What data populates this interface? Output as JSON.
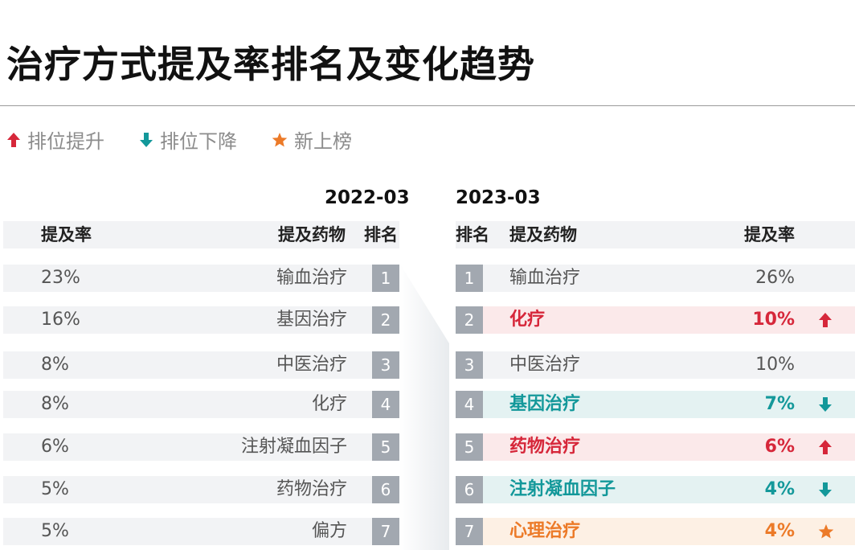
{
  "title": "治疗方式提及率排名及变化趋势",
  "legend": {
    "up_label": "排位提升",
    "down_label": "排位下降",
    "new_label": "新上榜"
  },
  "colors": {
    "up": "#d6273a",
    "down": "#13989a",
    "new": "#ec7a28",
    "rank_box": "#a2a8b0",
    "row_bg": "#f2f3f5"
  },
  "chart_data": {
    "type": "table",
    "left": {
      "period": "2022-03",
      "headers": {
        "rate": "提及率",
        "drug": "提及药物",
        "rank": "排名"
      },
      "rows": [
        {
          "rate": "23%",
          "drug": "输血治疗",
          "rank": "1"
        },
        {
          "rate": "16%",
          "drug": "基因治疗",
          "rank": "2"
        },
        {
          "rate": "8%",
          "drug": "中医治疗",
          "rank": "3"
        },
        {
          "rate": "8%",
          "drug": "化疗",
          "rank": "4"
        },
        {
          "rate": "6%",
          "drug": "注射凝血因子",
          "rank": "5"
        },
        {
          "rate": "5%",
          "drug": "药物治疗",
          "rank": "6"
        },
        {
          "rate": "5%",
          "drug": "偏方",
          "rank": "7"
        }
      ]
    },
    "right": {
      "period": "2023-03",
      "headers": {
        "rank": "排名",
        "drug": "提及药物",
        "rate": "提及率"
      },
      "rows": [
        {
          "rank": "1",
          "drug": "输血治疗",
          "rate": "26%",
          "change": "none"
        },
        {
          "rank": "2",
          "drug": "化疗",
          "rate": "10%",
          "change": "up"
        },
        {
          "rank": "3",
          "drug": "中医治疗",
          "rate": "10%",
          "change": "none"
        },
        {
          "rank": "4",
          "drug": "基因治疗",
          "rate": "7%",
          "change": "down"
        },
        {
          "rank": "5",
          "drug": "药物治疗",
          "rate": "6%",
          "change": "up"
        },
        {
          "rank": "6",
          "drug": "注射凝血因子",
          "rate": "4%",
          "change": "down"
        },
        {
          "rank": "7",
          "drug": "心理治疗",
          "rate": "4%",
          "change": "new"
        }
      ]
    }
  }
}
